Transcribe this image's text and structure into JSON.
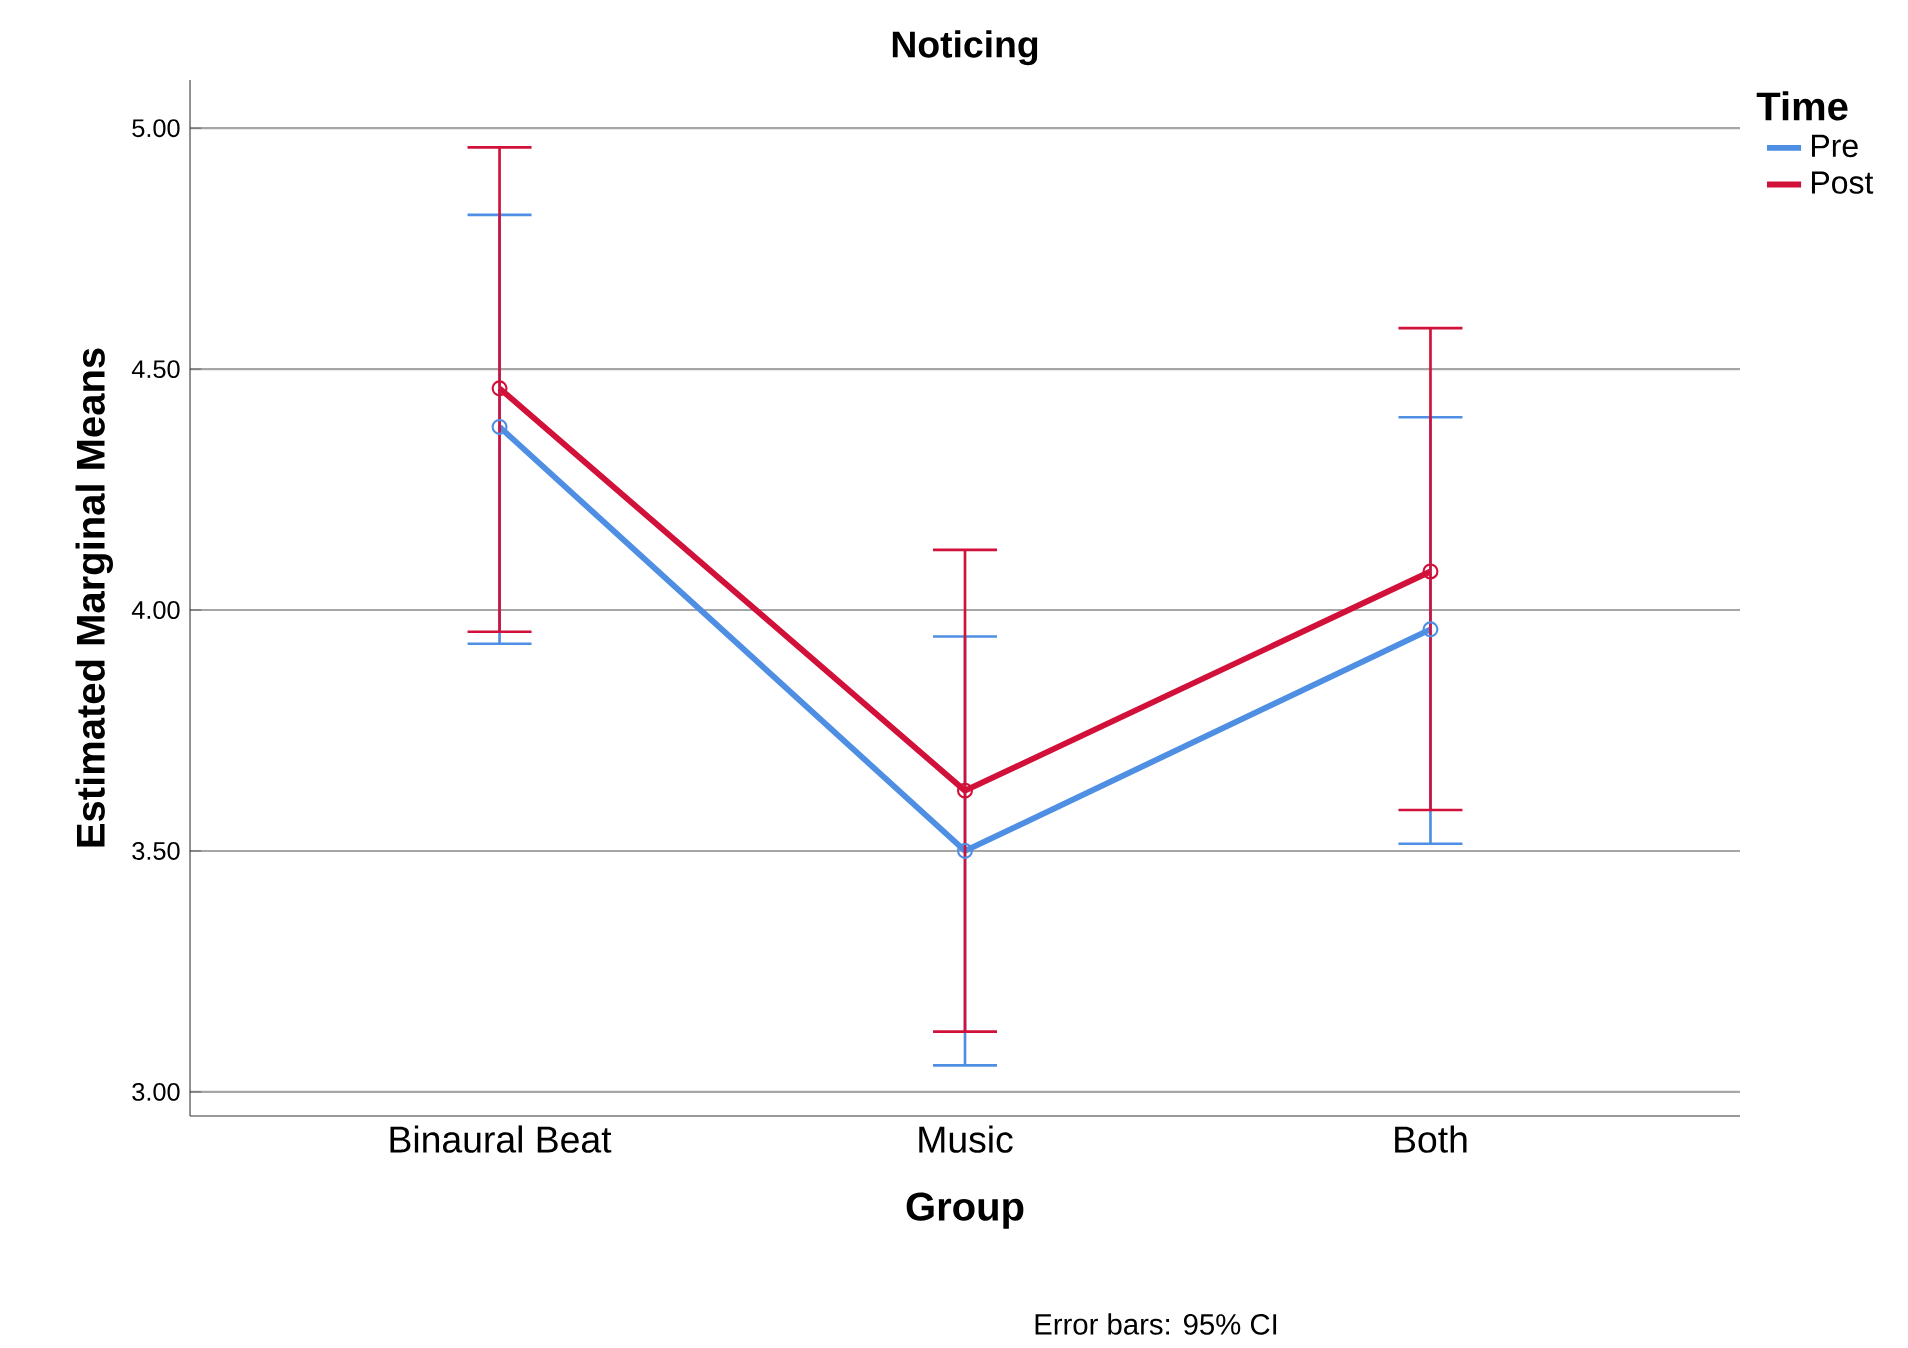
{
  "chart_data": {
    "type": "line",
    "title": "Noticing",
    "xlabel": "Group",
    "ylabel": "Estimated Marginal Means",
    "legend_title": "Time",
    "categories": [
      "Binaural Beat",
      "Music",
      "Both"
    ],
    "series": [
      {
        "name": "Pre",
        "color": "#4f8fe3",
        "values": [
          4.38,
          3.5,
          3.96
        ],
        "errors": [
          [
            3.93,
            4.82
          ],
          [
            3.055,
            3.945
          ],
          [
            3.515,
            4.4
          ]
        ]
      },
      {
        "name": "Post",
        "color": "#d2113a",
        "values": [
          4.46,
          3.625,
          4.08
        ],
        "errors": [
          [
            3.955,
            4.96
          ],
          [
            3.125,
            4.125
          ],
          [
            3.585,
            4.585
          ]
        ]
      }
    ],
    "ylim": [
      2.95,
      5.1
    ],
    "yticks": [
      {
        "value": 3,
        "label": "3.00"
      },
      {
        "value": 3.5,
        "label": "3.50"
      },
      {
        "value": 4,
        "label": "4.00"
      },
      {
        "value": 4.5,
        "label": "4.50"
      },
      {
        "value": 5,
        "label": "5.00"
      }
    ],
    "grid": "y",
    "legend": "top right",
    "marker": "circle",
    "line_style": "solid",
    "annotations": [
      "Error bars: 95% CI"
    ]
  }
}
